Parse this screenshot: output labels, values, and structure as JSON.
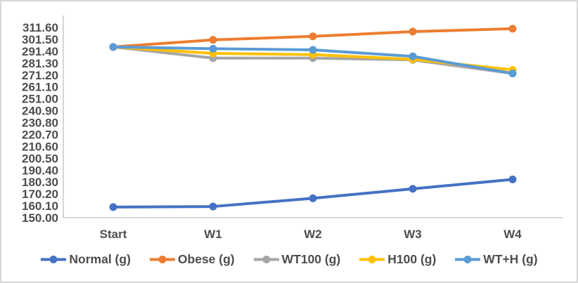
{
  "chart_data": {
    "type": "line",
    "title": "",
    "xlabel": "",
    "ylabel": "",
    "categories": [
      "Start",
      "W1",
      "W2",
      "W3",
      "W4"
    ],
    "series": [
      {
        "name": "Normal (g)",
        "color": "#4472C4",
        "values": [
          159.0,
          159.5,
          166.5,
          174.5,
          182.5
        ]
      },
      {
        "name": "Obese (g)",
        "color": "#ED7D31",
        "values": [
          295.0,
          301.0,
          304.0,
          308.0,
          310.5
        ]
      },
      {
        "name": "WT100 (g)",
        "color": "#A5A5A5",
        "values": [
          295.0,
          285.5,
          285.5,
          284.0,
          272.5
        ]
      },
      {
        "name": "H100 (g)",
        "color": "#FFC000",
        "values": [
          295.0,
          289.5,
          288.5,
          284.5,
          275.5
        ]
      },
      {
        "name": "WT+H (g)",
        "color": "#5B9BD5",
        "values": [
          295.0,
          293.5,
          292.5,
          287.0,
          272.5
        ]
      }
    ],
    "y_ticks": [
      "311.60",
      "301.50",
      "291.40",
      "281.30",
      "271.20",
      "261.10",
      "251.00",
      "240.90",
      "230.80",
      "220.70",
      "210.60",
      "200.50",
      "190.40",
      "180.30",
      "170.20",
      "160.10",
      "150.00"
    ],
    "y_axis": {
      "min": 150.0,
      "max": 311.6,
      "step": 10.1
    },
    "grid": false,
    "legend_position": "bottom",
    "marker": "circle",
    "text_color": "#4d4d4d",
    "axis_line_color": "#c9c9c9"
  }
}
